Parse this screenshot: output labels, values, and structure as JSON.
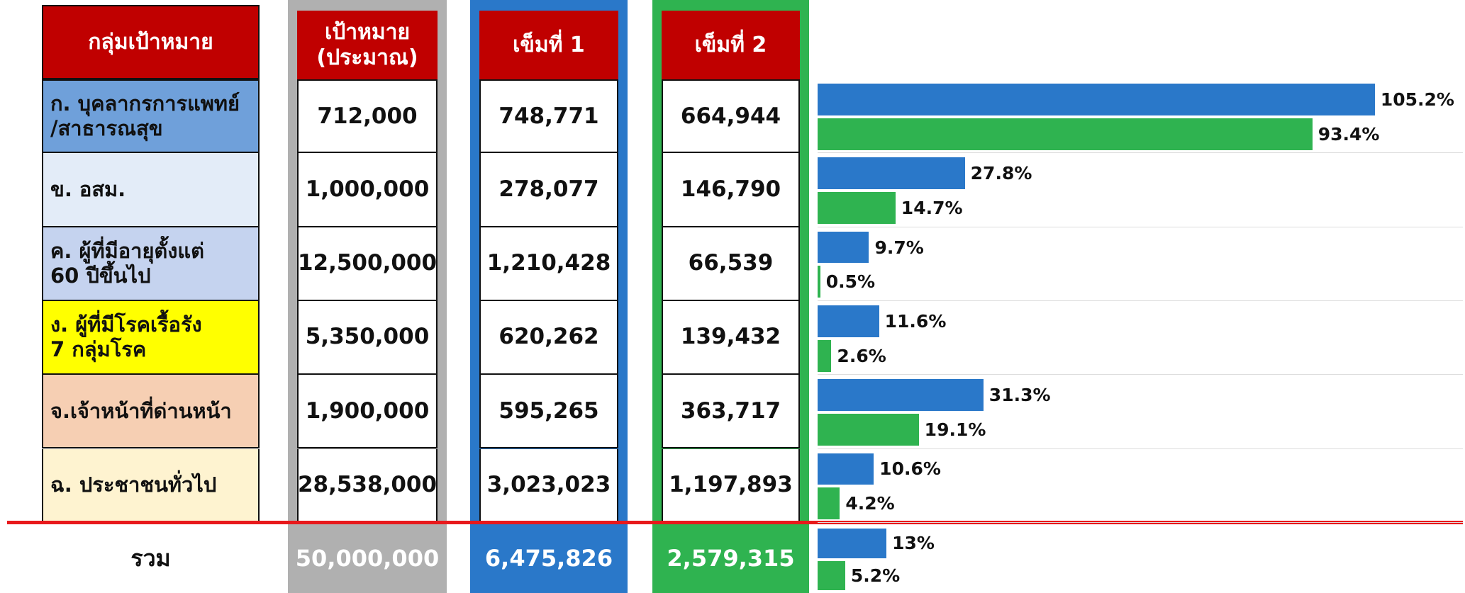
{
  "table": {
    "headers": [
      "กลุ่มเป้าหมาย",
      "เป้าหมาย\n(ประมาณ)",
      "เข็มที่ 1",
      "เข็มที่ 2"
    ],
    "rows": [
      [
        "ก. บุคลากรการแพทย์\n/สาธารณสุข",
        "712,000",
        "748,771",
        "664,944"
      ],
      [
        "ข. อสม.",
        "1,000,000",
        "278,077",
        "146,790"
      ],
      [
        "ค. ผู้ที่มีอายุตั้งแต่\n60 ปีขึ้นไป",
        "12,500,000",
        "1,210,428",
        "66,539"
      ],
      [
        "ง. ผู้ที่มีโรคเรื้อรัง\n7 กลุ่มโรค",
        "5,350,000",
        "620,262",
        "139,432"
      ],
      [
        "จ.เจ้าหน้าที่ด่านหน้า",
        "1,900,000",
        "595,265",
        "363,717"
      ],
      [
        "ฉ. ประชาชนทั่วไป",
        "28,538,000",
        "3,023,023",
        "1,197,893"
      ]
    ],
    "total": [
      "รวม",
      "50,000,000",
      "6,475,826",
      "2,579,315"
    ]
  },
  "chart_data": {
    "type": "bar",
    "orientation": "horizontal",
    "xlim": [
      0,
      100
    ],
    "series": [
      {
        "color": "#2a78c9",
        "values": [
          105.2,
          27.8,
          9.7,
          11.6,
          31.3,
          10.6,
          13
        ],
        "value_labels": [
          "105.2%",
          "27.8%",
          "9.7%",
          "11.6%",
          "31.3%",
          "10.6%",
          "13%"
        ]
      },
      {
        "color": "#2fb350",
        "values": [
          93.4,
          14.7,
          0.5,
          2.6,
          19.1,
          4.2,
          5.2
        ],
        "value_labels": [
          "93.4%",
          "14.7%",
          "0.5%",
          "2.6%",
          "19.1%",
          "4.2%",
          "5.2%"
        ]
      }
    ]
  }
}
